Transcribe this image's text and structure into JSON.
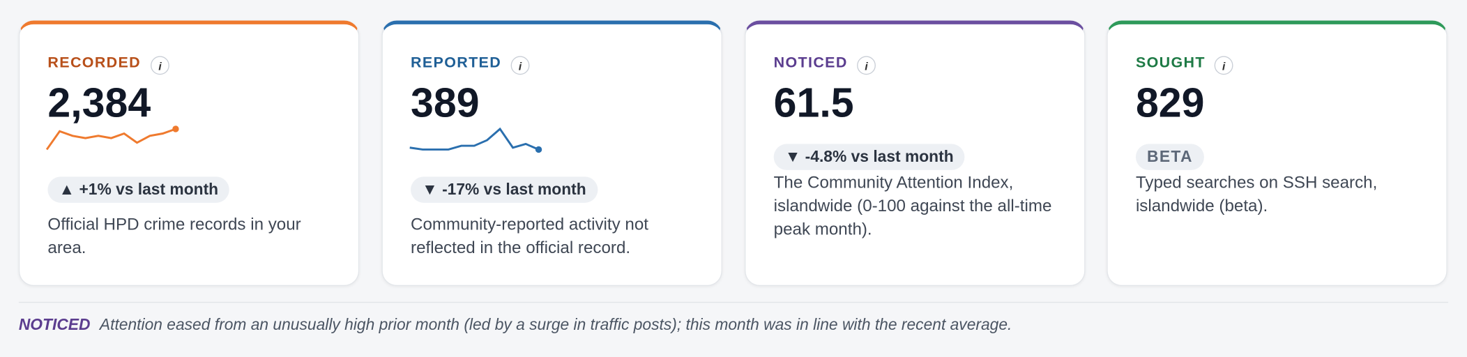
{
  "cards": [
    {
      "label": "RECORDED",
      "info": "i",
      "value": "2,384",
      "color": "#ef7a2e",
      "label_color": "#b8501a",
      "sparkline": [
        40,
        48,
        46,
        45,
        46,
        45,
        47,
        43,
        46,
        47,
        49
      ],
      "delta": "▲ +1% vs last month",
      "description": "Official HPD crime records in your area."
    },
    {
      "label": "REPORTED",
      "info": "i",
      "value": "389",
      "color": "#2a6fae",
      "label_color": "#1f5f96",
      "sparkline": [
        20,
        19,
        19,
        19,
        21,
        21,
        24,
        30,
        20,
        22,
        19
      ],
      "delta": "▼ -17% vs last month",
      "description": "Community-reported activity not reflected in the official record."
    },
    {
      "label": "NOTICED",
      "info": "i",
      "value": "61.5",
      "color": "#6b4fa0",
      "label_color": "#5b3d8f",
      "delta": "▼ -4.8% vs last month",
      "description": "The Community Attention Index, islandwide (0-100 against the all-time peak month)."
    },
    {
      "label": "SOUGHT",
      "info": "i",
      "value": "829",
      "color": "#2e9a5a",
      "label_color": "#1e7a45",
      "badge": "BETA",
      "description": "Typed searches on SSH search, islandwide (beta)."
    }
  ],
  "note": {
    "tag": "NOTICED",
    "text": "Attention eased from an unusually high prior month (led by a surge in traffic posts); this month was in line with the recent average."
  }
}
